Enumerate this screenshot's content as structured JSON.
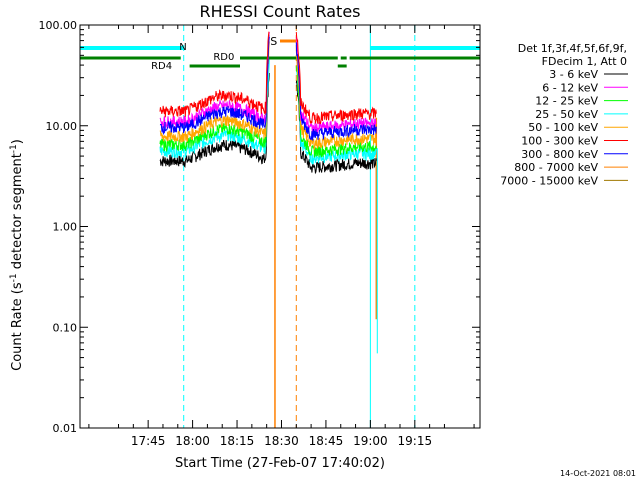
{
  "chart_data": {
    "type": "line",
    "title": "RHESSI Count Rates",
    "xlabel": "Start Time (27-Feb-07 17:40:02)",
    "ylabel_parts": {
      "main": "Count Rate (s",
      "sup": "-1",
      "rest": " detector segment",
      "sup2": "-1",
      "end": ")"
    },
    "yscale": "log",
    "ylim": [
      0.01,
      100
    ],
    "xlim_minutes": [
      -38,
      97
    ],
    "x_ticks": [
      {
        "t": -15,
        "label": "17:45"
      },
      {
        "t": 0,
        "label": "18:00"
      },
      {
        "t": 15,
        "label": "18:15"
      },
      {
        "t": 30,
        "label": "18:30"
      },
      {
        "t": 45,
        "label": "18:45"
      },
      {
        "t": 60,
        "label": "19:00"
      },
      {
        "t": 75,
        "label": "19:15"
      }
    ],
    "y_ticks": [
      {
        "v": 100,
        "label": "100.00"
      },
      {
        "v": 10,
        "label": "10.00"
      },
      {
        "v": 1,
        "label": "1.00"
      },
      {
        "v": 0.1,
        "label": "0.10"
      },
      {
        "v": 0.01,
        "label": "0.01"
      }
    ],
    "legend_header": [
      "Det 1f,3f,4f,5f,6f,9f,",
      "FDecim 1, Att 0"
    ],
    "series": [
      {
        "name": "3 - 6 keV",
        "color": "#000000",
        "f": 0.45
      },
      {
        "name": "6 - 12 keV",
        "color": "#ff00ff",
        "f": 1.55
      },
      {
        "name": "12 - 25 keV",
        "color": "#00ff00",
        "f": 0.78
      },
      {
        "name": "25 - 50 keV",
        "color": "#00ffff",
        "f": 0.55
      },
      {
        "name": "50 - 100 keV",
        "color": "#ffa500",
        "f": 0.95
      },
      {
        "name": "100 - 300 keV",
        "color": "#ff0000",
        "f": 2.0
      },
      {
        "name": "300 - 800 keV",
        "color": "#0000ff",
        "f": 1.2
      },
      {
        "name": "800 - 7000 keV",
        "color": "#ff8000",
        "f": 0
      },
      {
        "name": "7000 - 15000 keV",
        "color": "#a07800",
        "f": 0
      }
    ],
    "data_segments": [
      [
        -11,
        26
      ],
      [
        35,
        62
      ]
    ],
    "profile": [
      {
        "t": -11,
        "v": 1
      },
      {
        "t": -2,
        "v": 1
      },
      {
        "t": 2,
        "v": 1.15
      },
      {
        "t": 8,
        "v": 1.4
      },
      {
        "t": 12,
        "v": 1.45
      },
      {
        "t": 18,
        "v": 1.3
      },
      {
        "t": 24,
        "v": 1.05
      },
      {
        "t": 26,
        "v": 1.2
      },
      {
        "t": 35,
        "v": 1.35
      },
      {
        "t": 40,
        "v": 0.85
      },
      {
        "t": 48,
        "v": 0.9
      },
      {
        "t": 55,
        "v": 0.95
      },
      {
        "t": 62,
        "v": 0.95
      }
    ],
    "base_level": 4.5,
    "annotations": {
      "night_label": "N",
      "saa_label": "S",
      "rd0_label": "RD0",
      "rd4_label": "RD4"
    },
    "night_periods": [
      [
        -38,
        -3
      ],
      [
        60,
        97
      ]
    ],
    "saa_period": [
      28,
      35
    ],
    "green_bar_segments": [
      [
        -38,
        -4
      ],
      [
        -1,
        16
      ],
      [
        16,
        49
      ],
      [
        50,
        52
      ],
      [
        53,
        97
      ]
    ],
    "dashed_lines": {
      "cyan": [
        -3,
        75
      ],
      "orange": [
        35
      ]
    },
    "solid_lines": {
      "cyan_left": -38,
      "cyan_right": 60,
      "orange_saa": 27.8,
      "orange_end": 62
    }
  },
  "timestamp": "14-Oct-2021 08:01"
}
